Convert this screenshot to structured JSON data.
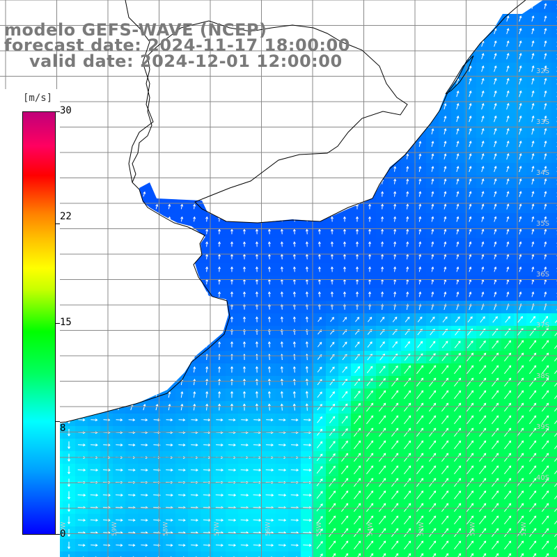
{
  "title": {
    "line1": "modelo GEFS-WAVE (NCEP)",
    "line2": "forecast date: 2024-11-17 18:00:00",
    "line3": "valid date: 2024-12-01 12:00:00"
  },
  "colorbar": {
    "unit": "[m/s]",
    "ticks": [
      "30",
      "22",
      "15",
      "8",
      "0"
    ],
    "tick_values": [
      30,
      22,
      15,
      8,
      0
    ],
    "range": [
      0,
      30
    ],
    "colors": [
      "#0000ff",
      "#00a0ff",
      "#00ffff",
      "#00ff60",
      "#00ff00",
      "#ffff00",
      "#ff8000",
      "#ff0000",
      "#c0007a"
    ]
  },
  "map": {
    "lat_labels": [
      "32S",
      "33S",
      "34S",
      "35S",
      "36S",
      "37S",
      "38S",
      "39S",
      "40S"
    ],
    "lon_labels": [
      "61W",
      "60W",
      "59W",
      "58W",
      "57W",
      "56W",
      "55W",
      "54W",
      "53W",
      "52W",
      "51W"
    ],
    "field": "wind speed and direction",
    "land_color": "#ffffff",
    "grid_color": "#888888",
    "coast_color": "#000000"
  }
}
